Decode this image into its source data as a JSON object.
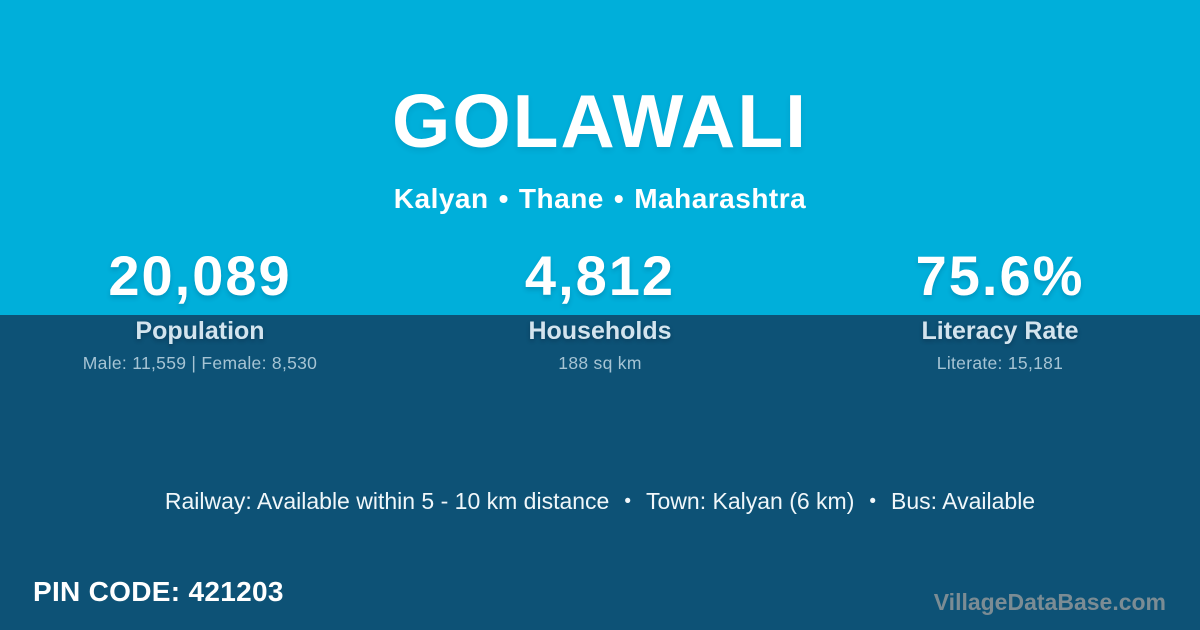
{
  "colors": {
    "top_background": "#00afda",
    "bottom_background": "#0d5276",
    "text_primary": "#ffffff",
    "stat_label": "#d3e4ee",
    "stat_detail": "#a6c4d4",
    "watermark": "#7b8c94"
  },
  "header": {
    "village_name": "GOLAWALI",
    "separator": "•",
    "location": {
      "tehsil": "Kalyan",
      "district": "Thane",
      "state": "Maharashtra"
    }
  },
  "stats": [
    {
      "value": "20,089",
      "label": "Population",
      "detail": "Male: 11,559 | Female: 8,530"
    },
    {
      "value": "4,812",
      "label": "Households",
      "detail": "188 sq km"
    },
    {
      "value": "75.6%",
      "label": "Literacy Rate",
      "detail": "Literate: 15,181"
    }
  ],
  "facilities": {
    "separator": "•",
    "items": [
      "Railway: Available within 5 - 10 km distance",
      "Town: Kalyan (6 km)",
      "Bus: Available"
    ]
  },
  "footer": {
    "pin_code_label": "PIN CODE:",
    "pin_code_value": "421203",
    "watermark": "VillageDataBase.com"
  }
}
